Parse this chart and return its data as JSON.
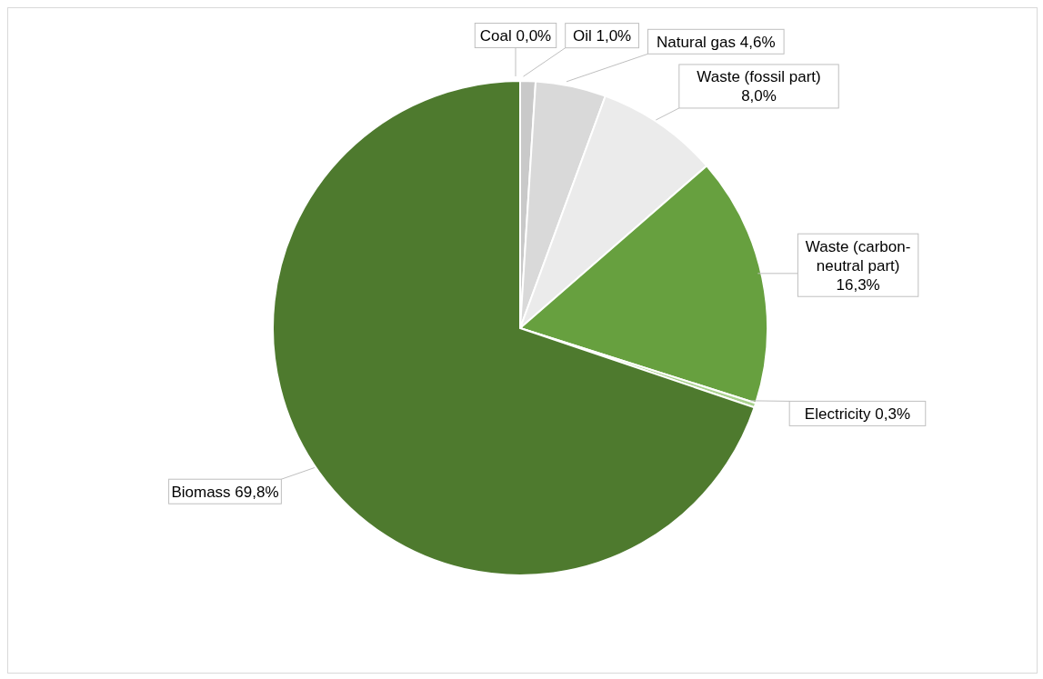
{
  "chart_data": {
    "type": "pie",
    "categories": [
      "Coal",
      "Oil",
      "Natural gas",
      "Waste (fossil part)",
      "Waste (carbon-neutral part)",
      "Electricity",
      "Biomass"
    ],
    "values": [
      0.0,
      1.0,
      4.6,
      8.0,
      16.3,
      0.3,
      69.8
    ],
    "colors": [
      "#a6a6a6",
      "#c9c9c9",
      "#d9d9d9",
      "#ebebeb",
      "#67a03f",
      "#a9d18e",
      "#4e7a2e"
    ],
    "value_labels": [
      "0,0%",
      "1,0%",
      "4,6%",
      "8,0%",
      "16,3%",
      "0,3%",
      "69,8%"
    ]
  }
}
